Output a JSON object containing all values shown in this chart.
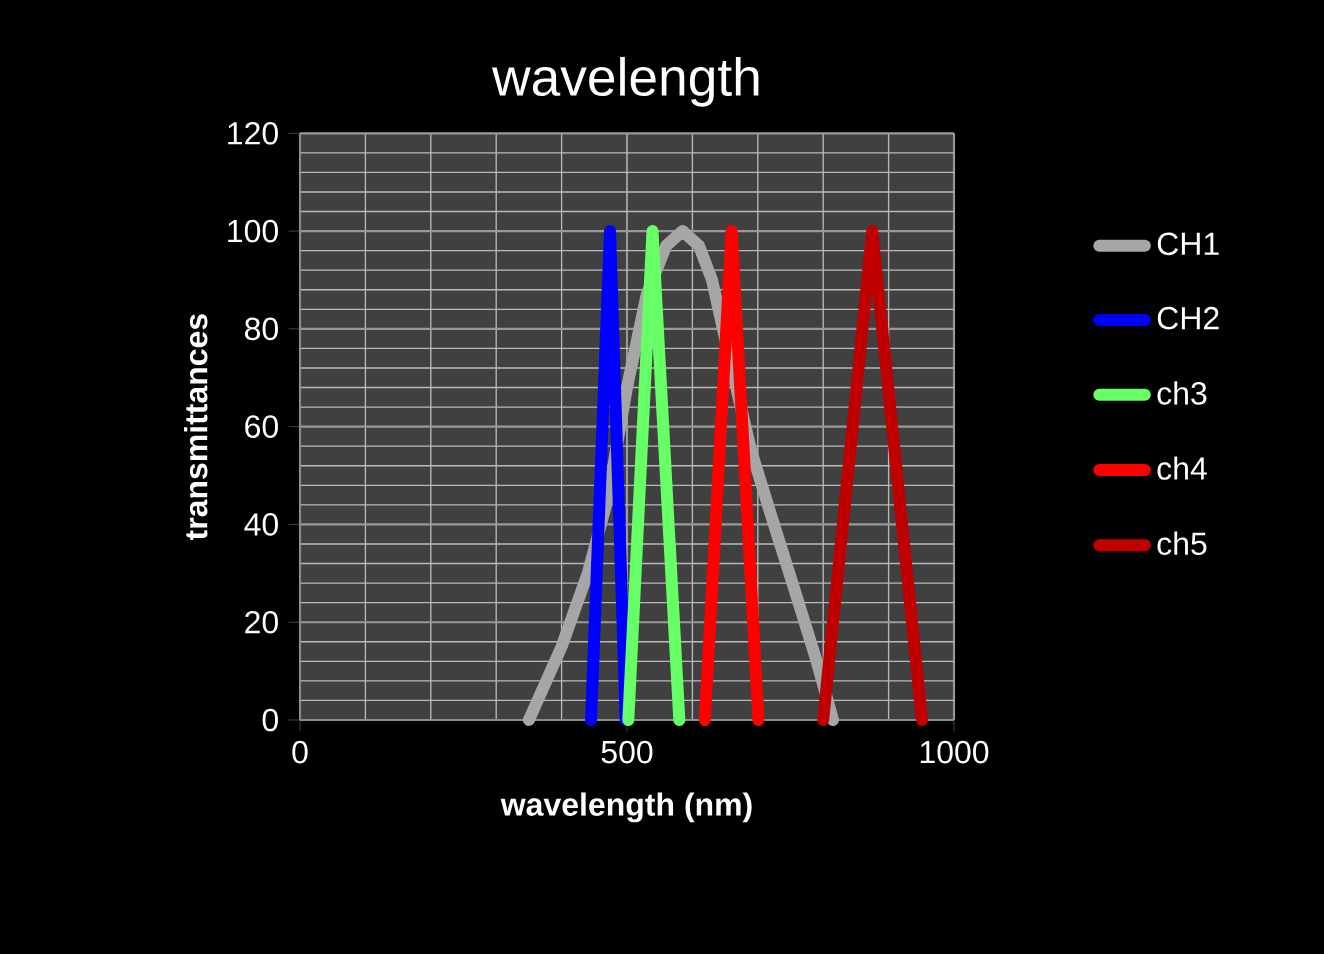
{
  "chart_data": {
    "type": "line",
    "title": "wavelength",
    "xlabel": "wavelength (nm)",
    "ylabel": "transmittances",
    "xlim": [
      0,
      1000
    ],
    "xticks": [
      0,
      500,
      1000
    ],
    "ylim": [
      0,
      120
    ],
    "yticks": [
      0,
      20,
      40,
      60,
      80,
      100,
      120
    ],
    "grid": true,
    "legend": "right",
    "marker": "none",
    "line_style": "solid",
    "series": [
      {
        "name": "CH1",
        "color": "#a6a6a6",
        "x": [
          350,
          400,
          440,
          470,
          500,
          530,
          560,
          585,
          610,
          630,
          660,
          690,
          720,
          760,
          790,
          815
        ],
        "values": [
          0,
          15,
          30,
          45,
          68,
          87,
          97,
          100,
          97,
          90,
          72,
          55,
          42,
          25,
          12,
          0
        ]
      },
      {
        "name": "CH2",
        "color": "#0000ff",
        "x": [
          445,
          474,
          498
        ],
        "values": [
          0,
          100,
          0
        ]
      },
      {
        "name": "ch3",
        "color": "#66ff66",
        "x": [
          502,
          539,
          580
        ],
        "values": [
          0,
          100,
          0
        ]
      },
      {
        "name": "ch4",
        "color": "#ff0000",
        "x": [
          619,
          660,
          701
        ],
        "values": [
          0,
          100,
          0
        ]
      },
      {
        "name": "ch5",
        "color": "#c00000",
        "x": [
          800,
          875,
          951
        ],
        "values": [
          0,
          100,
          0
        ]
      }
    ]
  }
}
